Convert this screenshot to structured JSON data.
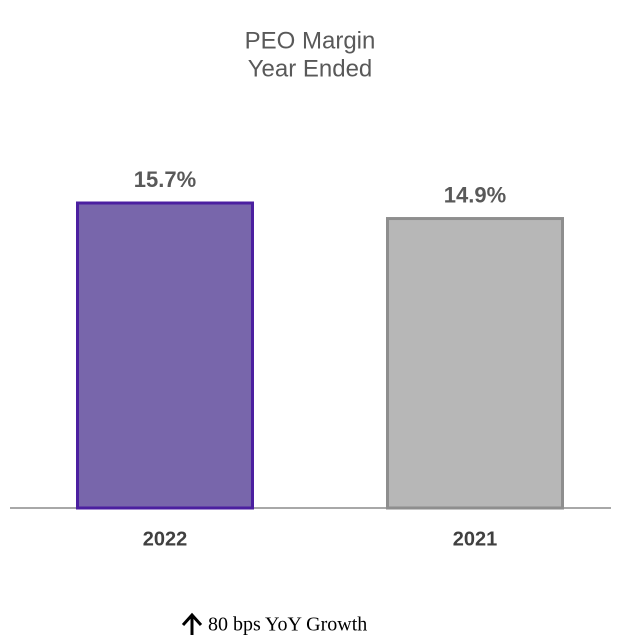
{
  "chart_data": {
    "type": "bar",
    "title": "PEO Margin",
    "subtitle": "Year Ended",
    "categories": [
      "2022",
      "2021"
    ],
    "values": [
      15.7,
      14.9
    ],
    "value_labels": [
      "15.7%",
      "14.9%"
    ],
    "colors": [
      "#7866ab",
      "#b7b7b7"
    ],
    "edge_colors": [
      "#4b1fa0",
      "#8e8e8e"
    ],
    "annotation": "80 bps YoY Growth"
  }
}
